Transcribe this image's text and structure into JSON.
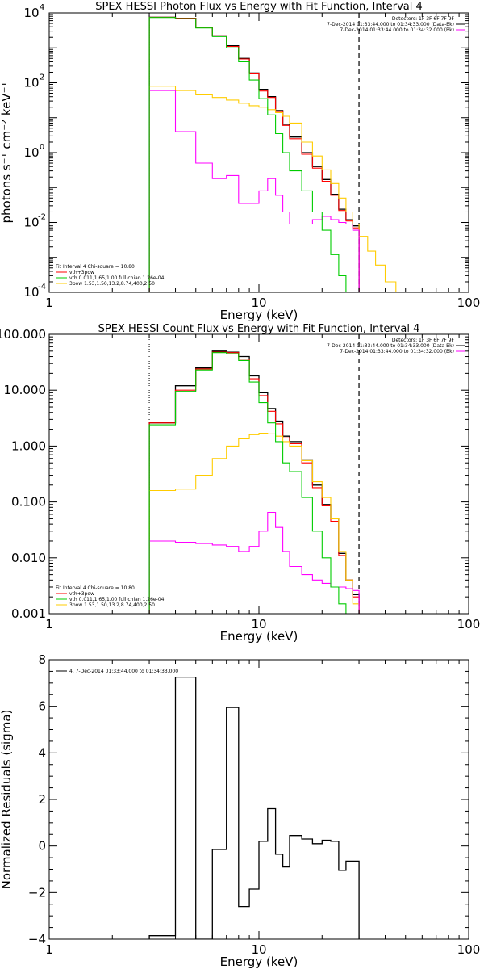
{
  "chart_data": [
    {
      "type": "line",
      "title": "SPEX HESSI Photon Flux vs Energy with Fit Function, Interval 4",
      "xlabel": "Energy (keV)",
      "ylabel": "photons s⁻¹ cm⁻² keV⁻¹",
      "xscale": "log",
      "yscale": "log",
      "xlim": [
        1,
        100
      ],
      "ylim": [
        0.0001,
        10000
      ],
      "x_ticks": [
        "1",
        "10",
        "100"
      ],
      "y_ticks": [
        {
          "value": 0.0001,
          "base": "10",
          "exp": "-4"
        },
        {
          "value": 0.01,
          "base": "10",
          "exp": "-2"
        },
        {
          "value": 1,
          "base": "10",
          "exp": "0"
        },
        {
          "value": 100,
          "base": "10",
          "exp": "2"
        },
        {
          "value": 10000,
          "base": "10",
          "exp": "4"
        }
      ],
      "fit_range": [
        3,
        30
      ],
      "header_lines": [
        "Detectors: 1F 3F 6F 7F 9F",
        "7-Dec-2014 01:33:44.000 to 01:34:33.000 (Data-Bk)",
        "7-Dec-2014 01:33:44.000 to 01:34:32.000 (Bk)"
      ],
      "fit_lines": [
        "Fit Interval 4   Chi-square = 10.80",
        "vth+3pow",
        "vth 0.011,1.65,1.00  full chian 1.26e-04",
        "3pow 1.53,1.50,13.2,8.74,400,2.50"
      ],
      "colors": {
        "data": "#000000",
        "total": "#ff0000",
        "vth": "#00cc00",
        "pow": "#ffcc00",
        "bk": "#ff00ff",
        "axes": "#000000"
      },
      "series": [
        {
          "name": "7-Dec-2014 01:33:44.000 to 01:34:33.000 (Data-Bk)",
          "role": "data",
          "edges": [
            3,
            4,
            5,
            6,
            7,
            8,
            9,
            10,
            11,
            12,
            13,
            14,
            16,
            18,
            20,
            22,
            24,
            26,
            28,
            30
          ],
          "values": [
            7500,
            7000,
            3800,
            2200,
            1150,
            500,
            190,
            65,
            40,
            16,
            6.5,
            2.8,
            1.0,
            0.4,
            0.17,
            0.064,
            0.024,
            0.012,
            0.008
          ]
        },
        {
          "name": "vth+3pow",
          "role": "total",
          "edges": [
            3,
            4,
            5,
            6,
            7,
            8,
            9,
            10,
            11,
            12,
            13,
            14,
            16,
            18,
            20,
            22,
            24,
            26,
            28,
            30
          ],
          "values": [
            7500,
            7000,
            3800,
            2200,
            1100,
            480,
            180,
            58,
            38,
            15,
            6.0,
            2.5,
            0.9,
            0.36,
            0.15,
            0.06,
            0.022,
            0.011,
            0.007
          ]
        },
        {
          "name": "vth",
          "role": "vth",
          "edges": [
            3,
            4,
            5,
            6,
            7,
            8,
            9,
            10,
            11,
            12,
            13,
            14,
            16,
            18,
            20,
            22,
            24,
            26,
            28
          ],
          "values": [
            7400,
            6800,
            3700,
            2100,
            1000,
            400,
            120,
            35,
            12,
            3.5,
            1.0,
            0.3,
            0.08,
            0.02,
            0.006,
            0.0012,
            0.0003,
            0.0001
          ]
        },
        {
          "name": "3pow",
          "role": "pow",
          "edges": [
            3,
            4,
            5,
            6,
            7,
            8,
            9,
            10,
            11,
            12,
            13,
            14,
            16,
            18,
            20,
            22,
            24,
            26,
            28,
            30,
            33,
            36,
            40,
            45,
            50
          ],
          "values": [
            80,
            60,
            45,
            38,
            32,
            26,
            22,
            20,
            17,
            14,
            11,
            7,
            2.0,
            0.8,
            0.32,
            0.13,
            0.05,
            0.02,
            0.009,
            0.004,
            0.0015,
            0.0006,
            0.0002,
            0.0001
          ]
        },
        {
          "name": "7-Dec-2014 01:33:44.000 to 01:34:32.000 (Bk)",
          "role": "bk",
          "edges": [
            3,
            4,
            5,
            6,
            7,
            8,
            9,
            10,
            11,
            12,
            13,
            14,
            16,
            18,
            20,
            22,
            24,
            26,
            28,
            30
          ],
          "values": [
            60,
            4.0,
            0.5,
            0.18,
            0.22,
            0.035,
            0.035,
            0.08,
            0.18,
            0.06,
            0.02,
            0.009,
            0.009,
            0.012,
            0.015,
            0.012,
            0.01,
            0.009,
            0.006
          ]
        }
      ]
    },
    {
      "type": "line",
      "title": "SPEX HESSI Count Flux vs Energy with Fit Function, Interval 4",
      "xlabel": "Energy (keV)",
      "ylabel": "",
      "xscale": "log",
      "yscale": "log",
      "xlim": [
        1,
        100
      ],
      "ylim": [
        0.001,
        100
      ],
      "x_ticks": [
        "1",
        "10",
        "100"
      ],
      "y_ticks": [
        {
          "value": 0.001,
          "text": "0.001"
        },
        {
          "value": 0.01,
          "text": "0.010"
        },
        {
          "value": 0.1,
          "text": "0.100"
        },
        {
          "value": 1,
          "text": "1.000"
        },
        {
          "value": 10,
          "text": "10.000"
        },
        {
          "value": 100,
          "text": "100.000"
        }
      ],
      "fit_range": [
        3,
        30
      ],
      "header_lines": [
        "Detectors: 1F 3F 6F 7F 9F",
        "7-Dec-2014 01:33:44.000 to 01:34:33.000 (Data-Bk)",
        "7-Dec-2014 01:33:44.000 to 01:34:32.000 (Bk)"
      ],
      "fit_lines": [
        "Fit Interval 4   Chi-square = 10.80",
        "vth+3pow",
        "vth 0.011,1.65,1.00  full chian 1.26e-04",
        "3pow 1.53,1.50,13.2,8.74,400,2.50"
      ],
      "colors": {
        "data": "#000000",
        "total": "#ff0000",
        "vth": "#00cc00",
        "pow": "#ffcc00",
        "bk": "#ff00ff",
        "axes": "#000000"
      },
      "series": [
        {
          "name": "7-Dec-2014 01:33:44.000 to 01:34:33.000 (Data-Bk)",
          "role": "data",
          "edges": [
            3,
            4,
            5,
            6,
            7,
            8,
            9,
            10,
            11,
            12,
            13,
            14,
            16,
            18,
            20,
            22,
            24,
            26,
            28,
            30
          ],
          "values": [
            2.6,
            12,
            25,
            50,
            48,
            40,
            18,
            9.0,
            4.7,
            2.8,
            1.5,
            1.2,
            0.55,
            0.2,
            0.09,
            0.05,
            0.012,
            0.004,
            0.0022
          ]
        },
        {
          "name": "vth+3pow",
          "role": "total",
          "edges": [
            3,
            4,
            5,
            6,
            7,
            8,
            9,
            10,
            11,
            12,
            13,
            14,
            16,
            18,
            20,
            22,
            24,
            26,
            28,
            30
          ],
          "values": [
            2.6,
            10,
            24,
            48,
            47,
            36,
            16,
            8.0,
            4.2,
            2.5,
            1.4,
            1.1,
            0.5,
            0.18,
            0.085,
            0.045,
            0.011,
            0.004,
            0.002
          ]
        },
        {
          "name": "vth",
          "role": "vth",
          "edges": [
            3,
            4,
            5,
            6,
            7,
            8,
            9,
            10,
            11,
            12,
            13,
            14,
            16,
            18,
            20,
            22,
            24,
            26,
            28
          ],
          "values": [
            2.4,
            9.5,
            23,
            47,
            45,
            34,
            14,
            6.0,
            2.6,
            1.2,
            0.5,
            0.35,
            0.12,
            0.03,
            0.01,
            0.003,
            0.0015,
            0.001
          ]
        },
        {
          "name": "3pow",
          "role": "pow",
          "edges": [
            3,
            4,
            5,
            6,
            7,
            8,
            9,
            10,
            11,
            12,
            13,
            14,
            16,
            18,
            20,
            22,
            24,
            26,
            28,
            30
          ],
          "values": [
            0.16,
            0.17,
            0.3,
            0.6,
            1.0,
            1.35,
            1.6,
            1.7,
            1.65,
            1.5,
            1.2,
            1.0,
            0.55,
            0.23,
            0.12,
            0.05,
            0.013,
            0.004,
            0.0015
          ]
        },
        {
          "name": "7-Dec-2014 01:33:44.000 to 01:34:32.000 (Bk)",
          "role": "bk",
          "edges": [
            3,
            4,
            5,
            6,
            7,
            8,
            9,
            10,
            11,
            12,
            13,
            14,
            16,
            18,
            20,
            22,
            24,
            26,
            28,
            30
          ],
          "values": [
            0.02,
            0.019,
            0.018,
            0.017,
            0.016,
            0.013,
            0.016,
            0.03,
            0.065,
            0.035,
            0.013,
            0.007,
            0.005,
            0.004,
            0.0035,
            0.003,
            0.003,
            0.0028,
            0.0026
          ]
        }
      ]
    },
    {
      "type": "line",
      "title": "",
      "xlabel": "Energy (keV)",
      "ylabel": "Normalized Residuals (sigma)",
      "xscale": "log",
      "yscale": "linear",
      "xlim": [
        1,
        100
      ],
      "ylim": [
        -4,
        8
      ],
      "x_ticks": [
        "1",
        "10",
        "100"
      ],
      "y_ticks": [
        {
          "value": -4,
          "text": "−4"
        },
        {
          "value": -2,
          "text": "−2"
        },
        {
          "value": 0,
          "text": "0"
        },
        {
          "value": 2,
          "text": "2"
        },
        {
          "value": 4,
          "text": "4"
        },
        {
          "value": 6,
          "text": "6"
        },
        {
          "value": 8,
          "text": "8"
        }
      ],
      "legend": "4.  7-Dec-2014 01:33:44.000 to 01:34:33.000",
      "colors": {
        "data": "#000000",
        "axes": "#000000"
      },
      "series": [
        {
          "name": "4.  7-Dec-2014 01:33:44.000 to 01:34:33.000",
          "role": "data",
          "edges": [
            3,
            4,
            5,
            6,
            7,
            8,
            9,
            10,
            11,
            12,
            13,
            14,
            16,
            18,
            20,
            22,
            24,
            26,
            28,
            30
          ],
          "values": [
            -3.85,
            7.25,
            -4.0,
            -0.15,
            5.95,
            -2.6,
            -1.85,
            0.2,
            1.6,
            -0.35,
            -0.9,
            0.45,
            0.3,
            0.1,
            0.25,
            0.2,
            -1.05,
            -0.65,
            -0.65
          ]
        }
      ]
    }
  ]
}
